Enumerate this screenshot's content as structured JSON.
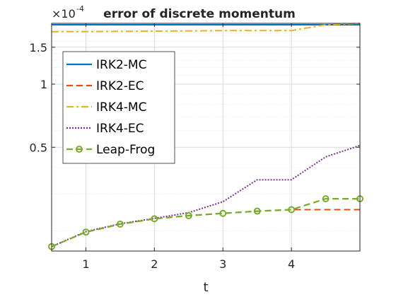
{
  "chart_data": {
    "type": "line",
    "title": "error of discrete momentum",
    "exponent_label": "×10",
    "exponent_power": "-4",
    "xlabel": "t",
    "ylabel": "",
    "xlim": [
      0.5,
      5.0
    ],
    "ylim_scaled": [
      0.16,
      1.95
    ],
    "yscale": "log",
    "grid": true,
    "legend_position": "upper-left",
    "x_ticks": [
      {
        "value": 1,
        "label": "1"
      },
      {
        "value": 2,
        "label": "2"
      },
      {
        "value": 3,
        "label": "3"
      },
      {
        "value": 4,
        "label": "4"
      }
    ],
    "y_ticks": [
      {
        "value": 0.5,
        "label": "0.5"
      },
      {
        "value": 1.0,
        "label": "1"
      },
      {
        "value": 1.5,
        "label": "1.5"
      }
    ],
    "series": [
      {
        "name": "IRK2-MC",
        "color": "#0072BD",
        "dash": "",
        "marker": false,
        "x": [
          0.5,
          5.0
        ],
        "y": [
          1.92,
          1.92
        ]
      },
      {
        "name": "IRK2-EC",
        "color": "#D95319",
        "dash": "9,5",
        "marker": false,
        "x": [
          0.5,
          1.0,
          1.5,
          2.0,
          2.5,
          3.0,
          3.5,
          4.0,
          4.5,
          5.0
        ],
        "y": [
          0.168,
          0.197,
          0.215,
          0.228,
          0.236,
          0.242,
          0.248,
          0.252,
          0.252,
          0.252
        ]
      },
      {
        "name": "IRK4-MC",
        "color": "#EDB120",
        "dash": "10,4,3,4",
        "marker": false,
        "x": [
          0.5,
          1.0,
          1.5,
          2.0,
          2.5,
          3.0,
          3.5,
          4.0,
          4.5,
          5.0
        ],
        "y": [
          1.78,
          1.78,
          1.785,
          1.79,
          1.795,
          1.8,
          1.8,
          1.8,
          1.92,
          1.95
        ]
      },
      {
        "name": "IRK4-EC",
        "color": "#7E2F8E",
        "dash": "2,2",
        "marker": false,
        "x": [
          0.5,
          1.0,
          1.5,
          2.0,
          2.5,
          3.0,
          3.5,
          4.0,
          4.5,
          5.0
        ],
        "y": [
          0.168,
          0.198,
          0.216,
          0.229,
          0.244,
          0.275,
          0.35,
          0.35,
          0.45,
          0.51
        ]
      },
      {
        "name": "Leap-Frog",
        "color": "#77AC30",
        "dash": "9,5",
        "marker": true,
        "x": [
          0.5,
          1.0,
          1.5,
          2.0,
          2.5,
          3.0,
          3.5,
          4.0,
          4.5,
          5.0
        ],
        "y": [
          0.168,
          0.197,
          0.215,
          0.228,
          0.236,
          0.242,
          0.248,
          0.252,
          0.284,
          0.284
        ]
      }
    ]
  }
}
